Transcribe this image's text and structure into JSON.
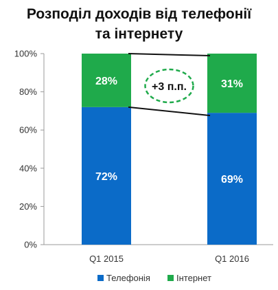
{
  "chart_data": {
    "type": "bar",
    "stacked": true,
    "percent_stacked": true,
    "title": "Розподіл доходів від телефонії та інтернету",
    "title_lines": [
      "Розподіл доходів від телефонії",
      "та інтернету"
    ],
    "categories": [
      "Q1 2015",
      "Q1 2016"
    ],
    "series": [
      {
        "name": "Телефонія",
        "values": [
          72,
          69
        ],
        "labels": [
          "72%",
          "69%"
        ],
        "color": "#0b6bc8"
      },
      {
        "name": "Інтернет",
        "values": [
          28,
          31
        ],
        "labels": [
          "28%",
          "31%"
        ],
        "color": "#1faa4b"
      }
    ],
    "ylim": [
      0,
      100
    ],
    "yticks": [
      0,
      20,
      40,
      60,
      80,
      100
    ],
    "ytick_labels": [
      "0%",
      "20%",
      "40%",
      "60%",
      "80%",
      "100%"
    ],
    "grid": false,
    "legend": "bottom",
    "annotation": {
      "text": "+3 п.п.",
      "style": "dashed-ellipse",
      "color": "#1faa4b"
    },
    "connector_lines": true
  }
}
